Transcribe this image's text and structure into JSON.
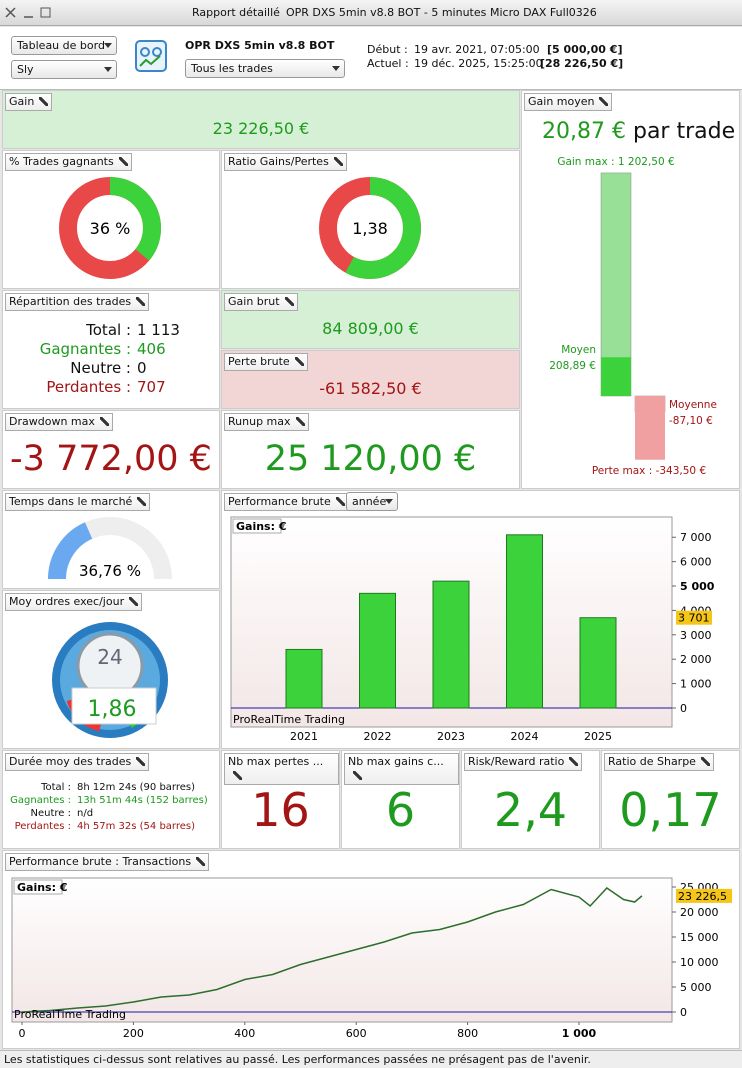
{
  "window": {
    "tab1": "Rapport détaillé",
    "tab2": "OPR DXS 5min v8.8 BOT - 5 minutes",
    "tab3": "Micro DAX Full0326"
  },
  "controls": {
    "view": "Tableau de bord",
    "profile": "Sly",
    "strategy": "OPR DXS 5min v8.8 BOT",
    "filter": "Tous les trades",
    "start_label": "Début :",
    "start_date": "19 avr. 2021, 07:05:00",
    "start_capital": "[5 000,00 €]",
    "end_label": "Actuel :",
    "end_date": "19 déc. 2025, 15:25:00",
    "end_capital": "[28 226,50 €]"
  },
  "gain": {
    "title": "Gain",
    "value": "23 226,50 €"
  },
  "gain_moyen": {
    "title": "Gain moyen",
    "value": "20,87 €",
    "unit": "par trade",
    "bars": [
      {
        "label": "Gain max : 1 202,50 €",
        "value": 1202.5,
        "color": "#98e098"
      },
      {
        "name": "Moyen",
        "label": "208,89 €",
        "value": 208.89,
        "color": "#3cd23c"
      },
      {
        "name": "Moyenne",
        "label": "-87,10 €",
        "value": -87.1,
        "color": "#e84848"
      },
      {
        "label": "Perte max : -343,50 €",
        "value": -343.5,
        "color": "#f0a0a0"
      }
    ]
  },
  "win_rate": {
    "title": "% Trades gagnants",
    "value": 36,
    "value_label": "36 %"
  },
  "ratio": {
    "title": "Ratio Gains/Pertes",
    "value": 1.38,
    "value_label": "1,38"
  },
  "repartition": {
    "title": "Répartition des trades",
    "rows": [
      [
        "Total :",
        "1 113"
      ],
      [
        "Gagnantes :",
        "406"
      ],
      [
        "Neutre :",
        "0"
      ],
      [
        "Perdantes :",
        "707"
      ]
    ]
  },
  "gain_brut": {
    "title": "Gain brut",
    "value": "84 809,00 €"
  },
  "perte_brute": {
    "title": "Perte brute",
    "value": "-61 582,50 €"
  },
  "drawdown": {
    "title": "Drawdown max",
    "value": "-3 772,00 €"
  },
  "runup": {
    "title": "Runup max",
    "value": "25 120,00 €"
  },
  "time_in_market": {
    "title": "Temps dans le marché",
    "value": 36.76,
    "value_label": "36,76 %"
  },
  "orders": {
    "title": "Moy ordres exec/jour",
    "icon_text": "24",
    "value": "1,86"
  },
  "duration": {
    "title": "Durée moy des trades",
    "rows": [
      [
        "Total :",
        "8h 12m 24s (90 barres)"
      ],
      [
        "Gagnantes :",
        "13h 51m 44s (152 barres)"
      ],
      [
        "Neutre :",
        "n/d"
      ],
      [
        "Perdantes :",
        "4h 57m 32s (54 barres)"
      ]
    ]
  },
  "stats": [
    {
      "title": "Nb max pertes ...",
      "value": "16"
    },
    {
      "title": "Nb max gains c...",
      "value": "6"
    },
    {
      "title": "Risk/Reward ratio",
      "value": "2,4"
    },
    {
      "title": "Ratio de Sharpe",
      "value": "0,17"
    }
  ],
  "chart_data": [
    {
      "type": "bar",
      "title": "Performance brute",
      "period": "année",
      "legend": "Gains: €",
      "watermark": "ProRealTime Trading",
      "color": "#3cd23c",
      "categories": [
        "2021",
        "2022",
        "2023",
        "2024",
        "2025"
      ],
      "values": [
        2400,
        4700,
        5200,
        7100,
        3701
      ],
      "last_value_label": "3 701",
      "ylim": [
        -780,
        7830
      ],
      "yticks": [
        0,
        {
          "value": 1000,
          "label": "1 000"
        },
        {
          "value": 2000,
          "label": "2 000"
        },
        {
          "value": 3000,
          "label": "3 000"
        },
        {
          "value": 4000,
          "label": "4 000"
        },
        {
          "value": 5000,
          "label": "5 000"
        },
        {
          "value": 6000,
          "label": "6 000"
        },
        {
          "value": 7000,
          "label": "7 000"
        }
      ]
    },
    {
      "type": "line",
      "title": "Performance brute : Transactions",
      "legend": "Gains: €",
      "watermark": "ProRealTime Trading",
      "color": "#2c6e2c",
      "x": [
        0,
        50,
        100,
        150,
        200,
        250,
        300,
        350,
        400,
        450,
        500,
        550,
        600,
        650,
        700,
        750,
        800,
        850,
        900,
        950,
        1000,
        1020,
        1050,
        1080,
        1100,
        1113
      ],
      "values": [
        0,
        300,
        800,
        1200,
        2000,
        3000,
        3400,
        4500,
        6500,
        7500,
        9500,
        11000,
        12500,
        14000,
        15800,
        16500,
        18000,
        20000,
        21500,
        24500,
        23000,
        21200,
        24800,
        22500,
        22000,
        23226.5
      ],
      "last_value_label": "23 226,5",
      "xlim": [
        -18,
        1167
      ],
      "xticks": [
        0,
        200,
        400,
        600,
        800,
        {
          "value": 1000,
          "label": "1 000"
        }
      ],
      "ylim": [
        -2000,
        26800
      ],
      "yticks": [
        0,
        {
          "value": 5000,
          "label": "5 000"
        },
        {
          "value": 10000,
          "label": "10 000"
        },
        {
          "value": 15000,
          "label": "15 000"
        },
        {
          "value": 20000,
          "label": "20 000"
        },
        {
          "value": 25000,
          "label": "25 000"
        }
      ]
    }
  ],
  "footer": "Les statistiques ci-dessus sont relatives au passé. Les performances passées ne présagent pas de l'avenir."
}
